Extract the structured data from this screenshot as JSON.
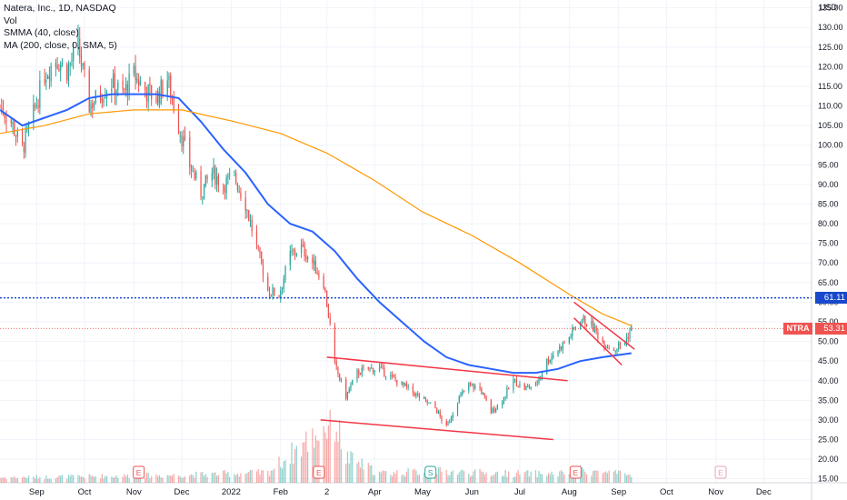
{
  "legend": {
    "title": "Natera, Inc., 1D, NASDAQ",
    "vol": "Vol",
    "smma": "SMMA (40, close)",
    "ma": "MA (200, close, 0, SMA, 5)"
  },
  "currency": "USD",
  "ticker": "NTRA",
  "last_price": "53.31",
  "level_price": "61.11",
  "colors": {
    "up": "#26a69a",
    "down": "#ef5350",
    "smma": "#2962ff",
    "ma": "#ff9800",
    "trendline": "#f23645",
    "level": "#1848cc",
    "grid": "#f0f3fa",
    "text": "#131722"
  },
  "chart_data": {
    "type": "candlestick",
    "y_axis": {
      "ticks": [
        15,
        20,
        25,
        30,
        35,
        40,
        45,
        50,
        55,
        60,
        65,
        70,
        75,
        80,
        85,
        90,
        95,
        100,
        105,
        110,
        115,
        120,
        125,
        130,
        135
      ],
      "tick_labels": [
        "15.00",
        "20.00",
        "25.00",
        "30.00",
        "35.00",
        "40.00",
        "45.00",
        "50.00",
        "55.00",
        "60.00",
        "65.00",
        "70.00",
        "75.00",
        "80.00",
        "85.00",
        "90.00",
        "95.00",
        "100.00",
        "105.00",
        "110.00",
        "115.00",
        "120.00",
        "125.00",
        "130.00",
        "135.00"
      ],
      "range": [
        14,
        137
      ]
    },
    "x_axis": {
      "range": [
        "2021-08-09",
        "2022-12-31"
      ],
      "ticks": [
        {
          "label": "Sep",
          "date": "2021-09-01"
        },
        {
          "label": "Oct",
          "date": "2021-10-01"
        },
        {
          "label": "Nov",
          "date": "2021-11-01"
        },
        {
          "label": "Dec",
          "date": "2021-12-01"
        },
        {
          "label": "2022",
          "date": "2022-01-01"
        },
        {
          "label": "Feb",
          "date": "2022-02-01"
        },
        {
          "label": "2",
          "date": "2022-03-02"
        },
        {
          "label": "Apr",
          "date": "2022-04-01"
        },
        {
          "label": "May",
          "date": "2022-05-01"
        },
        {
          "label": "Jun",
          "date": "2022-06-01"
        },
        {
          "label": "Jul",
          "date": "2022-07-01"
        },
        {
          "label": "Aug",
          "date": "2022-08-01"
        },
        {
          "label": "Sep",
          "date": "2022-09-01"
        },
        {
          "label": "Oct",
          "date": "2022-10-01"
        },
        {
          "label": "Nov",
          "date": "2022-11-01"
        },
        {
          "label": "Dec",
          "date": "2022-12-01"
        }
      ]
    },
    "close_path": [
      [
        "2021-08-09",
        110
      ],
      [
        "2021-08-16",
        106
      ],
      [
        "2021-08-23",
        99
      ],
      [
        "2021-08-30",
        108
      ],
      [
        "2021-09-06",
        118
      ],
      [
        "2021-09-13",
        122
      ],
      [
        "2021-09-20",
        119
      ],
      [
        "2021-09-27",
        125
      ],
      [
        "2021-10-04",
        110
      ],
      [
        "2021-10-11",
        113
      ],
      [
        "2021-10-18",
        116
      ],
      [
        "2021-10-25",
        113
      ],
      [
        "2021-11-01",
        118
      ],
      [
        "2021-11-08",
        114
      ],
      [
        "2021-11-15",
        112
      ],
      [
        "2021-11-22",
        117
      ],
      [
        "2021-11-29",
        105
      ],
      [
        "2021-12-06",
        95
      ],
      [
        "2021-12-13",
        88
      ],
      [
        "2021-12-20",
        93
      ],
      [
        "2021-12-27",
        90
      ],
      [
        "2022-01-03",
        92
      ],
      [
        "2022-01-10",
        85
      ],
      [
        "2022-01-17",
        74
      ],
      [
        "2022-01-24",
        63
      ],
      [
        "2022-01-31",
        62
      ],
      [
        "2022-02-07",
        72
      ],
      [
        "2022-02-14",
        74
      ],
      [
        "2022-02-21",
        70
      ],
      [
        "2022-02-28",
        65
      ],
      [
        "2022-03-04",
        54
      ],
      [
        "2022-03-07",
        44
      ],
      [
        "2022-03-14",
        36
      ],
      [
        "2022-03-21",
        42
      ],
      [
        "2022-03-28",
        43
      ],
      [
        "2022-04-04",
        43
      ],
      [
        "2022-04-11",
        41
      ],
      [
        "2022-04-18",
        39
      ],
      [
        "2022-04-25",
        37
      ],
      [
        "2022-05-02",
        35
      ],
      [
        "2022-05-09",
        33
      ],
      [
        "2022-05-16",
        28
      ],
      [
        "2022-05-23",
        35
      ],
      [
        "2022-05-30",
        39
      ],
      [
        "2022-06-06",
        38
      ],
      [
        "2022-06-13",
        32
      ],
      [
        "2022-06-20",
        35
      ],
      [
        "2022-06-27",
        40
      ],
      [
        "2022-07-04",
        38
      ],
      [
        "2022-07-11",
        39
      ],
      [
        "2022-07-18",
        45
      ],
      [
        "2022-07-25",
        48
      ],
      [
        "2022-08-01",
        51
      ],
      [
        "2022-08-08",
        56
      ],
      [
        "2022-08-15",
        54
      ],
      [
        "2022-08-22",
        50
      ],
      [
        "2022-08-29",
        48
      ],
      [
        "2022-09-05",
        50
      ],
      [
        "2022-09-09",
        53.31
      ]
    ],
    "volume_path": [
      [
        "2021-08-09",
        0.8
      ],
      [
        "2021-10-04",
        1.0
      ],
      [
        "2021-11-29",
        1.2
      ],
      [
        "2022-01-24",
        1.6
      ],
      [
        "2022-03-07",
        10
      ],
      [
        "2022-03-14",
        4
      ],
      [
        "2022-04-04",
        1.5
      ],
      [
        "2022-05-09",
        1.8
      ],
      [
        "2022-06-13",
        1.5
      ],
      [
        "2022-07-25",
        1.4
      ],
      [
        "2022-08-08",
        2.0
      ],
      [
        "2022-09-09",
        1.2
      ]
    ],
    "series": [
      {
        "name": "SMMA (40, close)",
        "points": [
          [
            "2021-08-09",
            109
          ],
          [
            "2021-08-23",
            105
          ],
          [
            "2021-09-06",
            107
          ],
          [
            "2021-09-20",
            109
          ],
          [
            "2021-10-04",
            112
          ],
          [
            "2021-10-18",
            113
          ],
          [
            "2021-11-01",
            113
          ],
          [
            "2021-11-15",
            113
          ],
          [
            "2021-11-29",
            112
          ],
          [
            "2021-12-13",
            106
          ],
          [
            "2021-12-27",
            99
          ],
          [
            "2022-01-10",
            93
          ],
          [
            "2022-01-24",
            85
          ],
          [
            "2022-02-07",
            80
          ],
          [
            "2022-02-21",
            78
          ],
          [
            "2022-03-07",
            73
          ],
          [
            "2022-03-21",
            66
          ],
          [
            "2022-04-04",
            60
          ],
          [
            "2022-04-18",
            55
          ],
          [
            "2022-05-02",
            50
          ],
          [
            "2022-05-16",
            46
          ],
          [
            "2022-05-30",
            44
          ],
          [
            "2022-06-13",
            43
          ],
          [
            "2022-06-27",
            42
          ],
          [
            "2022-07-11",
            42
          ],
          [
            "2022-07-25",
            43
          ],
          [
            "2022-08-08",
            45
          ],
          [
            "2022-08-22",
            46
          ],
          [
            "2022-09-09",
            47
          ]
        ]
      },
      {
        "name": "MA (200, close, 0, SMA, 5)",
        "points": [
          [
            "2021-08-09",
            103
          ],
          [
            "2021-09-06",
            105
          ],
          [
            "2021-10-04",
            108
          ],
          [
            "2021-11-01",
            109
          ],
          [
            "2021-12-01",
            109
          ],
          [
            "2022-01-03",
            106
          ],
          [
            "2022-02-01",
            103
          ],
          [
            "2022-03-02",
            98
          ],
          [
            "2022-04-01",
            91
          ],
          [
            "2022-05-01",
            83
          ],
          [
            "2022-06-01",
            77
          ],
          [
            "2022-07-01",
            70
          ],
          [
            "2022-08-01",
            62
          ],
          [
            "2022-08-22",
            57
          ],
          [
            "2022-09-09",
            54
          ]
        ]
      }
    ],
    "trendlines": [
      {
        "from": [
          "2022-03-02",
          46
        ],
        "to": [
          "2022-07-31",
          40
        ]
      },
      {
        "from": [
          "2022-02-26",
          30
        ],
        "to": [
          "2022-07-22",
          25
        ]
      },
      {
        "from": [
          "2022-08-04",
          60
        ],
        "to": [
          "2022-09-11",
          48
        ]
      },
      {
        "from": [
          "2022-08-04",
          56
        ],
        "to": [
          "2022-09-03",
          44
        ]
      }
    ],
    "horizontal_level": 61.11,
    "last_price": 53.31,
    "earnings_markers": [
      {
        "date": "2021-11-04",
        "label": "E"
      },
      {
        "date": "2022-02-25",
        "label": "E"
      },
      {
        "date": "2022-08-05",
        "label": "E"
      },
      {
        "date": "2022-11-04",
        "label": "E"
      }
    ],
    "dividend_markers": [
      {
        "date": "2022-05-06",
        "label": "S"
      }
    ]
  }
}
